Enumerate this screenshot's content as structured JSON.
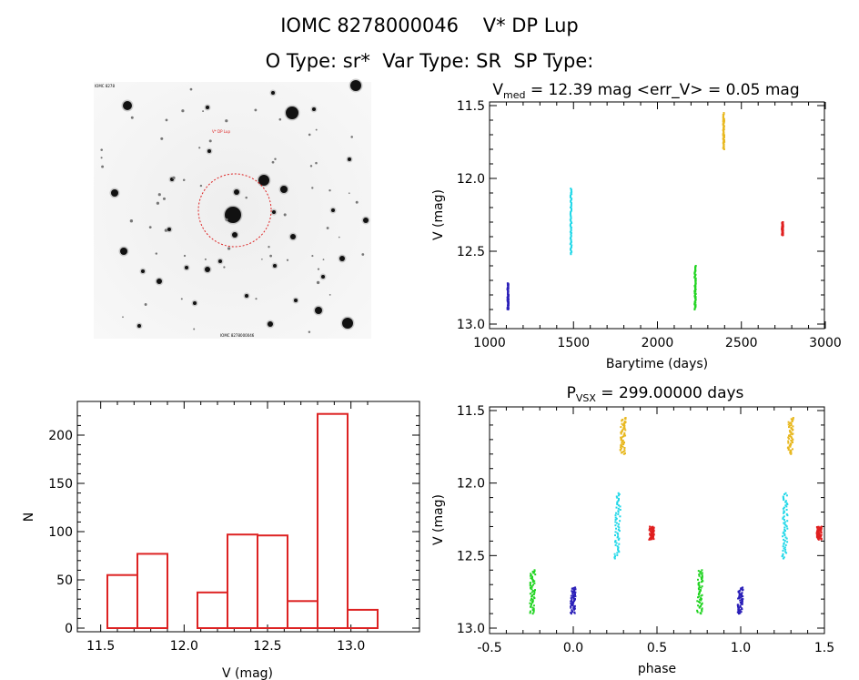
{
  "header": {
    "title": "IOMC 8278000046    V* DP Lup",
    "subtitle": "O Type: sr*  Var Type: SR  SP Type:"
  },
  "finder": {
    "label_top_left": "IOMC 8278",
    "label_star": "V* DP Lup",
    "label_bottom_center": "IOMC 8278000046"
  },
  "chart_data": [
    {
      "type": "scatter",
      "title": "V_med = 12.39 mag <err_V> = 0.05 mag",
      "title_main": "V",
      "title_sub": "med",
      "title_rest": " = 12.39 mag <err_V> = 0.05 mag",
      "xlabel": "Barytime (days)",
      "ylabel": "V (mag)",
      "xlim": [
        1000,
        3000
      ],
      "ylim": [
        13.0,
        11.5
      ],
      "y_inverted": true,
      "xticks": [
        1000,
        1500,
        2000,
        2500,
        3000
      ],
      "yticks": [
        "11.5",
        "12.0",
        "12.5",
        "13.0"
      ],
      "series": [
        {
          "color": "#2a1fb8",
          "x": 1110,
          "v_range": [
            12.72,
            12.9
          ]
        },
        {
          "color": "#22d8e8",
          "x": 1485,
          "v_range": [
            12.07,
            12.52
          ]
        },
        {
          "color": "#22d422",
          "x": 2225,
          "v_range": [
            12.6,
            12.9
          ]
        },
        {
          "color": "#e8b820",
          "x": 2395,
          "v_range": [
            11.55,
            11.8
          ]
        },
        {
          "color": "#e02020",
          "x": 2745,
          "v_range": [
            12.3,
            12.39
          ]
        }
      ]
    },
    {
      "type": "bar",
      "xlabel": "V (mag)",
      "ylabel": "N",
      "xlim": [
        11.5,
        13.1
      ],
      "ylim": [
        0,
        225
      ],
      "xticks": [
        "11.5",
        "12.0",
        "12.5",
        "13.0"
      ],
      "yticks": [
        "0",
        "50",
        "100",
        "150",
        "200"
      ],
      "bin_edges": [
        11.54,
        11.72,
        11.9,
        12.08,
        12.26,
        12.44,
        12.62,
        12.8,
        12.98,
        13.16
      ],
      "bins": [
        {
          "left": 11.54,
          "right": 11.72,
          "count": 55
        },
        {
          "left": 11.72,
          "right": 11.9,
          "count": 77
        },
        {
          "left": 12.08,
          "right": 12.26,
          "count": 37
        },
        {
          "left": 12.26,
          "right": 12.44,
          "count": 97
        },
        {
          "left": 12.44,
          "right": 12.62,
          "count": 96
        },
        {
          "left": 12.62,
          "right": 12.8,
          "count": 28
        },
        {
          "left": 12.8,
          "right": 12.98,
          "count": 222
        },
        {
          "left": 12.98,
          "right": 13.16,
          "count": 19
        }
      ],
      "color": "#dd2222"
    },
    {
      "type": "scatter",
      "title": "P_VSX = 299.00000 days",
      "title_main": "P",
      "title_sub": "VSX",
      "title_rest": " = 299.00000 days",
      "xlabel": "phase",
      "ylabel": "V (mag)",
      "xlim": [
        -0.5,
        1.5
      ],
      "ylim": [
        13.0,
        11.5
      ],
      "y_inverted": true,
      "xticks": [
        "-0.5",
        "0.0",
        "0.5",
        "1.0",
        "1.5"
      ],
      "yticks": [
        "11.5",
        "12.0",
        "12.5",
        "13.0"
      ],
      "series": [
        {
          "color": "#22d422",
          "phase": [
            -0.24,
            0.76
          ],
          "v_range": [
            12.6,
            12.9
          ]
        },
        {
          "color": "#2a1fb8",
          "phase": [
            0.0,
            1.0
          ],
          "v_range": [
            12.72,
            12.9
          ]
        },
        {
          "color": "#22d8e8",
          "phase": [
            0.27,
            1.27
          ],
          "v_range": [
            12.07,
            12.52
          ]
        },
        {
          "color": "#e8b820",
          "phase": [
            0.3,
            1.3
          ],
          "v_range": [
            11.55,
            11.8
          ]
        },
        {
          "color": "#e02020",
          "phase": [
            0.47,
            1.47
          ],
          "v_range": [
            12.3,
            12.39
          ]
        }
      ]
    }
  ]
}
